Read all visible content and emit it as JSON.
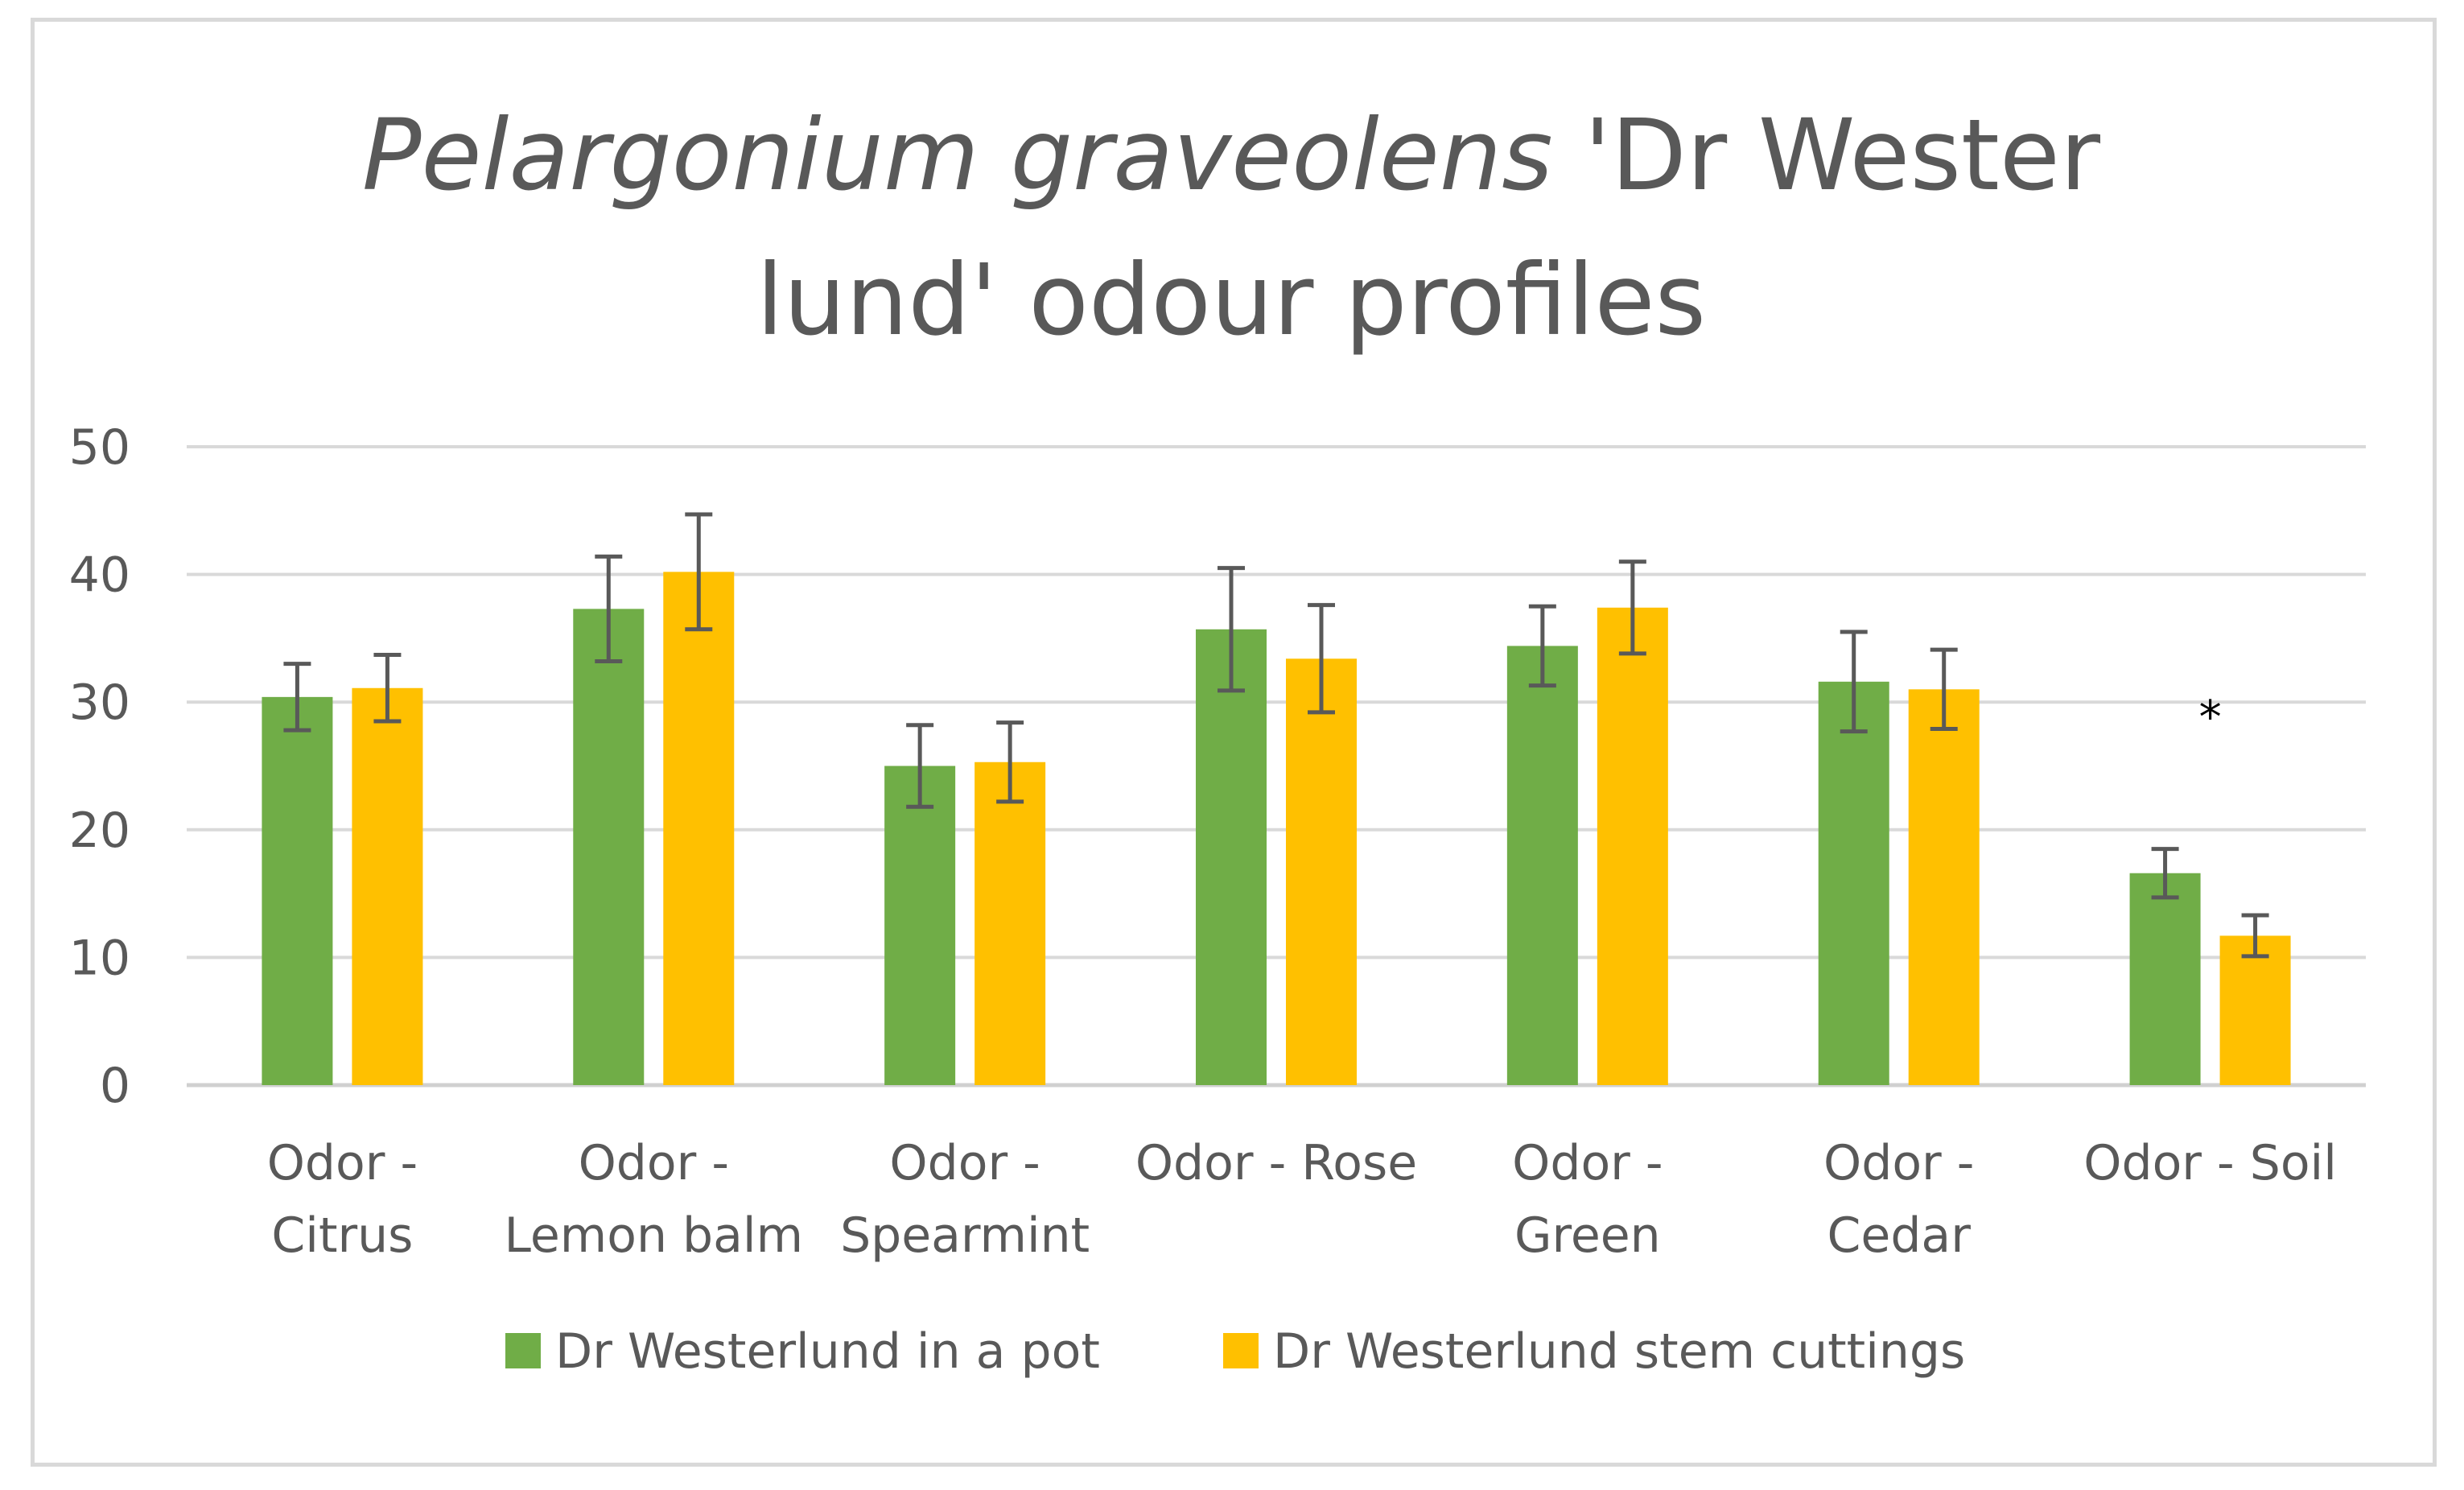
{
  "chart_data": {
    "type": "bar",
    "title_italic": "Pelargonium graveolens",
    "title_rest_line1": "'Dr Wester",
    "title_line2": "lund' odour profiles",
    "xlabel": "",
    "ylabel": "",
    "ylim": [
      0,
      50
    ],
    "yticks": [
      0,
      10,
      20,
      30,
      40,
      50
    ],
    "grid": true,
    "legend_position": "bottom",
    "categories": [
      [
        "Odor -",
        "Citrus"
      ],
      [
        "Odor -",
        "Lemon balm"
      ],
      [
        "Odor -",
        "Spearmint"
      ],
      [
        "Odor - Rose"
      ],
      [
        "Odor -",
        "Green"
      ],
      [
        "Odor -",
        "Cedar"
      ],
      [
        "Odor - Soil"
      ]
    ],
    "series": [
      {
        "name": "Dr Westerlund in a pot",
        "color": "#70ad47",
        "values": [
          30.4,
          37.3,
          25.0,
          35.7,
          34.4,
          31.6,
          16.6
        ],
        "errors": [
          2.6,
          4.1,
          3.2,
          4.8,
          3.1,
          3.9,
          1.9
        ]
      },
      {
        "name": "Dr Westerlund stem cuttings",
        "color": "#ffc000",
        "values": [
          31.1,
          40.2,
          25.3,
          33.4,
          37.4,
          31.0,
          11.7
        ],
        "errors": [
          2.6,
          4.5,
          3.1,
          4.2,
          3.6,
          3.1,
          1.6
        ]
      }
    ],
    "annotations": [
      {
        "text": "*",
        "category_index": 6,
        "y": 30
      }
    ]
  }
}
